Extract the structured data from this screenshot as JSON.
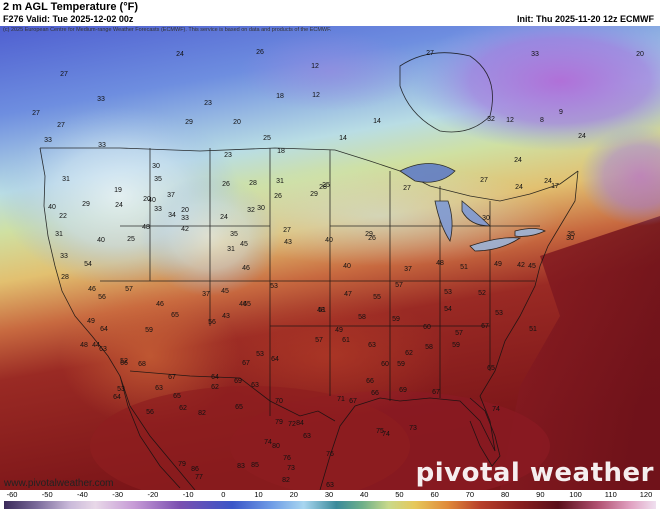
{
  "header": {
    "title": "2 m AGL Temperature (°F)",
    "valid": "F276 Valid: Tue 2025-12-02 00z",
    "init": "Init: Thu 2025-11-20 12z ECMWF",
    "credit": "(c) 2025 European Centre for Medium-range Weather Forecasts (ECMWF). This service is based on data and products of the ECMWF."
  },
  "footer": {
    "website": "www.pivotalweather.com",
    "brand": "pivotal weather"
  },
  "colorbar": {
    "ticks": [
      "-60",
      "-50",
      "-40",
      "-30",
      "-20",
      "-10",
      "0",
      "10",
      "20",
      "30",
      "40",
      "50",
      "60",
      "70",
      "80",
      "90",
      "100",
      "110",
      "120"
    ]
  },
  "map": {
    "values": [
      {
        "t": "27"
      },
      {
        "t": "24"
      },
      {
        "t": "26"
      },
      {
        "t": "12"
      },
      {
        "t": "27"
      },
      {
        "t": "33"
      },
      {
        "t": "20"
      },
      {
        "t": "27"
      },
      {
        "t": "33"
      },
      {
        "t": "27"
      },
      {
        "t": "23"
      },
      {
        "t": "18"
      },
      {
        "t": "12"
      },
      {
        "t": "14"
      },
      {
        "t": "9"
      },
      {
        "t": "33"
      },
      {
        "t": "29"
      },
      {
        "t": "20"
      },
      {
        "t": "25"
      },
      {
        "t": "14"
      },
      {
        "t": "12"
      },
      {
        "t": "8"
      },
      {
        "t": "31"
      },
      {
        "t": "23"
      },
      {
        "t": "18"
      },
      {
        "t": "32"
      },
      {
        "t": "24"
      },
      {
        "t": "24"
      },
      {
        "t": "17"
      },
      {
        "t": "33"
      },
      {
        "t": "30"
      },
      {
        "t": "19"
      },
      {
        "t": "35"
      },
      {
        "t": "37"
      },
      {
        "t": "40"
      },
      {
        "t": "33"
      },
      {
        "t": "33"
      },
      {
        "t": "26"
      },
      {
        "t": "28"
      },
      {
        "t": "26"
      },
      {
        "t": "25"
      },
      {
        "t": "29"
      },
      {
        "t": "24"
      },
      {
        "t": "20"
      },
      {
        "t": "31"
      },
      {
        "t": "28"
      },
      {
        "t": "27"
      },
      {
        "t": "24"
      },
      {
        "t": "24"
      },
      {
        "t": "22"
      },
      {
        "t": "40"
      },
      {
        "t": "20"
      },
      {
        "t": "24"
      },
      {
        "t": "32"
      },
      {
        "t": "27"
      },
      {
        "t": "29"
      },
      {
        "t": "26"
      },
      {
        "t": "27"
      },
      {
        "t": "31"
      },
      {
        "t": "40"
      },
      {
        "t": "25"
      },
      {
        "t": "34"
      },
      {
        "t": "35"
      },
      {
        "t": "30"
      },
      {
        "t": "43"
      },
      {
        "t": "40"
      },
      {
        "t": "29"
      },
      {
        "t": "30"
      },
      {
        "t": "33"
      },
      {
        "t": "48"
      },
      {
        "t": "42"
      },
      {
        "t": "31"
      },
      {
        "t": "45"
      },
      {
        "t": "46"
      },
      {
        "t": "40"
      },
      {
        "t": "37"
      },
      {
        "t": "48"
      },
      {
        "t": "42"
      },
      {
        "t": "35"
      },
      {
        "t": "30"
      },
      {
        "t": "28"
      },
      {
        "t": "54"
      },
      {
        "t": "45"
      },
      {
        "t": "53"
      },
      {
        "t": "45"
      },
      {
        "t": "51"
      },
      {
        "t": "49"
      },
      {
        "t": "45"
      },
      {
        "t": "46"
      },
      {
        "t": "57"
      },
      {
        "t": "37"
      },
      {
        "t": "46"
      },
      {
        "t": "51"
      },
      {
        "t": "47"
      },
      {
        "t": "55"
      },
      {
        "t": "57"
      },
      {
        "t": "53"
      },
      {
        "t": "52"
      },
      {
        "t": "49"
      },
      {
        "t": "56"
      },
      {
        "t": "46"
      },
      {
        "t": "48"
      },
      {
        "t": "58"
      },
      {
        "t": "59"
      },
      {
        "t": "54"
      },
      {
        "t": "53"
      },
      {
        "t": "44"
      },
      {
        "t": "59"
      },
      {
        "t": "56"
      },
      {
        "t": "49"
      },
      {
        "t": "60"
      },
      {
        "t": "57"
      },
      {
        "t": "51"
      },
      {
        "t": "48"
      },
      {
        "t": "63"
      },
      {
        "t": "65"
      },
      {
        "t": "43"
      },
      {
        "t": "53"
      },
      {
        "t": "57"
      },
      {
        "t": "61"
      },
      {
        "t": "62"
      },
      {
        "t": "58"
      },
      {
        "t": "67"
      },
      {
        "t": "52"
      },
      {
        "t": "64"
      },
      {
        "t": "66"
      },
      {
        "t": "67"
      },
      {
        "t": "64"
      },
      {
        "t": "63"
      },
      {
        "t": "60"
      },
      {
        "t": "59"
      },
      {
        "t": "59"
      },
      {
        "t": "53"
      },
      {
        "t": "68"
      },
      {
        "t": "63"
      },
      {
        "t": "62"
      },
      {
        "t": "64"
      },
      {
        "t": "65"
      },
      {
        "t": "56"
      },
      {
        "t": "67"
      },
      {
        "t": "69"
      },
      {
        "t": "65"
      },
      {
        "t": "70"
      },
      {
        "t": "67"
      },
      {
        "t": "66"
      },
      {
        "t": "64"
      },
      {
        "t": "65"
      },
      {
        "t": "63"
      },
      {
        "t": "66"
      },
      {
        "t": "67"
      },
      {
        "t": "69"
      },
      {
        "t": "62"
      },
      {
        "t": "82"
      },
      {
        "t": "75"
      },
      {
        "t": "73"
      },
      {
        "t": "74"
      },
      {
        "t": "74"
      },
      {
        "t": "80"
      },
      {
        "t": "79"
      },
      {
        "t": "72"
      },
      {
        "t": "76"
      },
      {
        "t": "84"
      },
      {
        "t": "85"
      },
      {
        "t": "71"
      },
      {
        "t": "73"
      },
      {
        "t": "79"
      },
      {
        "t": "86"
      },
      {
        "t": "83"
      },
      {
        "t": "63"
      },
      {
        "t": "74"
      },
      {
        "t": "76"
      },
      {
        "t": "77"
      },
      {
        "t": "82"
      },
      {
        "t": "63"
      },
      {
        "t": "75"
      }
    ]
  }
}
